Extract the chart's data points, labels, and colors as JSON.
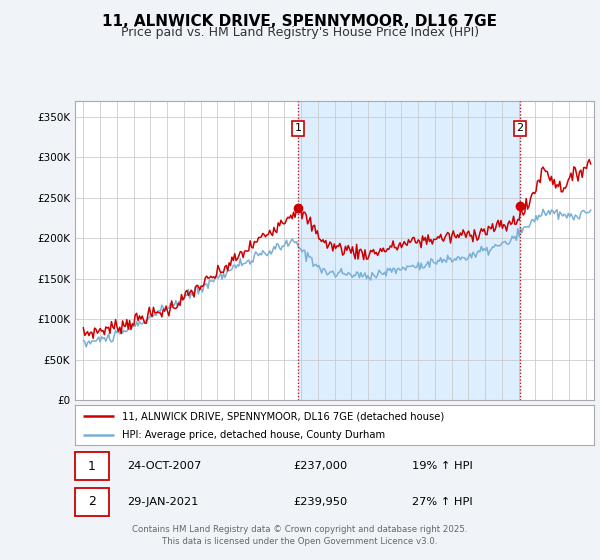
{
  "title": "11, ALNWICK DRIVE, SPENNYMOOR, DL16 7GE",
  "subtitle": "Price paid vs. HM Land Registry's House Price Index (HPI)",
  "title_fontsize": 11,
  "subtitle_fontsize": 9,
  "red_color": "#cc0000",
  "blue_color": "#7ab0d4",
  "shade_color": "#ddeeff",
  "background_color": "#f0f4f8",
  "plot_bg_color": "#ffffff",
  "grid_color": "#cccccc",
  "legend1_label": "11, ALNWICK DRIVE, SPENNYMOOR, DL16 7GE (detached house)",
  "legend2_label": "HPI: Average price, detached house, County Durham",
  "marker1_date_x": 2007.81,
  "marker1_date_label": "24-OCT-2007",
  "marker1_price": "£237,000",
  "marker1_hpi": "19% ↑ HPI",
  "marker2_date_x": 2021.08,
  "marker2_date_label": "29-JAN-2021",
  "marker2_price": "£239,950",
  "marker2_hpi": "27% ↑ HPI",
  "xlim": [
    1994.5,
    2025.5
  ],
  "ylim": [
    0,
    370000
  ],
  "yticks": [
    0,
    50000,
    100000,
    150000,
    200000,
    250000,
    300000,
    350000
  ],
  "ytick_labels": [
    "£0",
    "£50K",
    "£100K",
    "£150K",
    "£200K",
    "£250K",
    "£300K",
    "£350K"
  ],
  "xticks": [
    1995,
    1996,
    1997,
    1998,
    1999,
    2000,
    2001,
    2002,
    2003,
    2004,
    2005,
    2006,
    2007,
    2008,
    2009,
    2010,
    2011,
    2012,
    2013,
    2014,
    2015,
    2016,
    2017,
    2018,
    2019,
    2020,
    2021,
    2022,
    2023,
    2024,
    2025
  ],
  "footer": "Contains HM Land Registry data © Crown copyright and database right 2025.\nThis data is licensed under the Open Government Licence v3.0."
}
